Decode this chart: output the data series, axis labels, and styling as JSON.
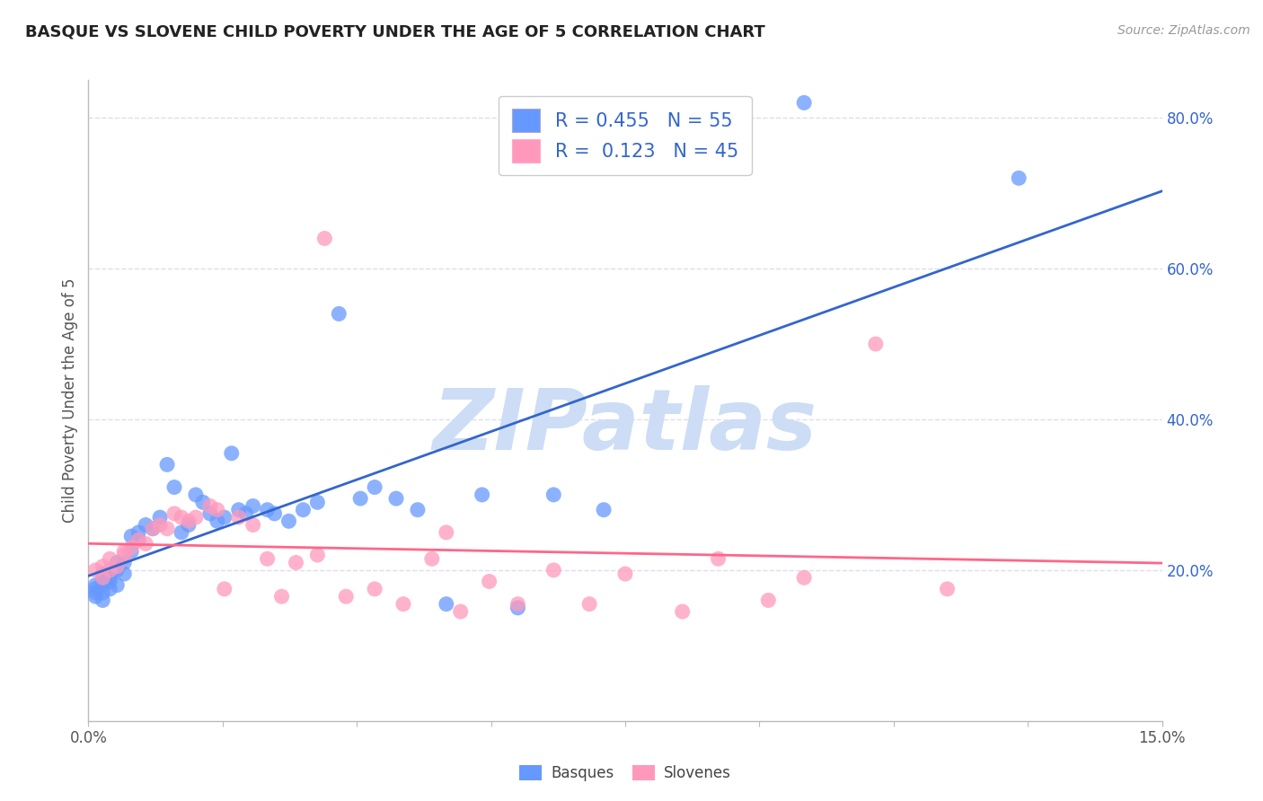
{
  "title": "BASQUE VS SLOVENE CHILD POVERTY UNDER THE AGE OF 5 CORRELATION CHART",
  "source": "Source: ZipAtlas.com",
  "ylabel": "Child Poverty Under the Age of 5",
  "xlim": [
    0.0,
    0.15
  ],
  "ylim": [
    0.0,
    0.85
  ],
  "x_ticks": [
    0.0,
    0.01875,
    0.0375,
    0.05625,
    0.075,
    0.09375,
    0.1125,
    0.13125,
    0.15
  ],
  "x_tick_labels": [
    "0.0%",
    "",
    "",
    "",
    "",
    "",
    "",
    "",
    "15.0%"
  ],
  "y_ticks_right": [
    0.2,
    0.4,
    0.6,
    0.8
  ],
  "y_tick_labels_right": [
    "20.0%",
    "40.0%",
    "60.0%",
    "80.0%"
  ],
  "basque_color": "#6699ff",
  "slovene_color": "#ff99bb",
  "basque_line_color": "#3366cc",
  "slovene_line_color": "#ff6688",
  "legend_color": "#3366cc",
  "watermark": "ZIPatlas",
  "watermark_color": "#ccddf5",
  "R_basque": 0.455,
  "N_basque": 55,
  "R_slovene": 0.123,
  "N_slovene": 45,
  "basque_x": [
    0.001,
    0.001,
    0.001,
    0.001,
    0.002,
    0.002,
    0.002,
    0.002,
    0.002,
    0.003,
    0.003,
    0.003,
    0.003,
    0.004,
    0.004,
    0.004,
    0.005,
    0.005,
    0.006,
    0.006,
    0.007,
    0.007,
    0.008,
    0.009,
    0.01,
    0.011,
    0.012,
    0.013,
    0.014,
    0.015,
    0.016,
    0.017,
    0.018,
    0.019,
    0.02,
    0.021,
    0.022,
    0.023,
    0.025,
    0.026,
    0.028,
    0.03,
    0.032,
    0.035,
    0.038,
    0.04,
    0.043,
    0.046,
    0.05,
    0.055,
    0.06,
    0.065,
    0.072,
    0.1,
    0.13
  ],
  "basque_y": [
    0.165,
    0.17,
    0.175,
    0.18,
    0.16,
    0.17,
    0.18,
    0.185,
    0.195,
    0.175,
    0.185,
    0.19,
    0.195,
    0.18,
    0.2,
    0.21,
    0.195,
    0.21,
    0.225,
    0.245,
    0.24,
    0.25,
    0.26,
    0.255,
    0.27,
    0.34,
    0.31,
    0.25,
    0.26,
    0.3,
    0.29,
    0.275,
    0.265,
    0.27,
    0.355,
    0.28,
    0.275,
    0.285,
    0.28,
    0.275,
    0.265,
    0.28,
    0.29,
    0.54,
    0.295,
    0.31,
    0.295,
    0.28,
    0.155,
    0.3,
    0.15,
    0.3,
    0.28,
    0.82,
    0.72
  ],
  "slovene_x": [
    0.001,
    0.002,
    0.002,
    0.003,
    0.003,
    0.004,
    0.005,
    0.005,
    0.006,
    0.007,
    0.008,
    0.009,
    0.01,
    0.011,
    0.012,
    0.013,
    0.014,
    0.015,
    0.017,
    0.018,
    0.019,
    0.021,
    0.023,
    0.025,
    0.027,
    0.029,
    0.032,
    0.036,
    0.04,
    0.044,
    0.048,
    0.052,
    0.056,
    0.06,
    0.065,
    0.07,
    0.075,
    0.083,
    0.088,
    0.095,
    0.1,
    0.11,
    0.12,
    0.05,
    0.033
  ],
  "slovene_y": [
    0.2,
    0.19,
    0.205,
    0.2,
    0.215,
    0.205,
    0.22,
    0.225,
    0.23,
    0.24,
    0.235,
    0.255,
    0.26,
    0.255,
    0.275,
    0.27,
    0.265,
    0.27,
    0.285,
    0.28,
    0.175,
    0.27,
    0.26,
    0.215,
    0.165,
    0.21,
    0.22,
    0.165,
    0.175,
    0.155,
    0.215,
    0.145,
    0.185,
    0.155,
    0.2,
    0.155,
    0.195,
    0.145,
    0.215,
    0.16,
    0.19,
    0.5,
    0.175,
    0.25,
    0.64
  ],
  "background_color": "#ffffff",
  "grid_color": "#ddddee"
}
